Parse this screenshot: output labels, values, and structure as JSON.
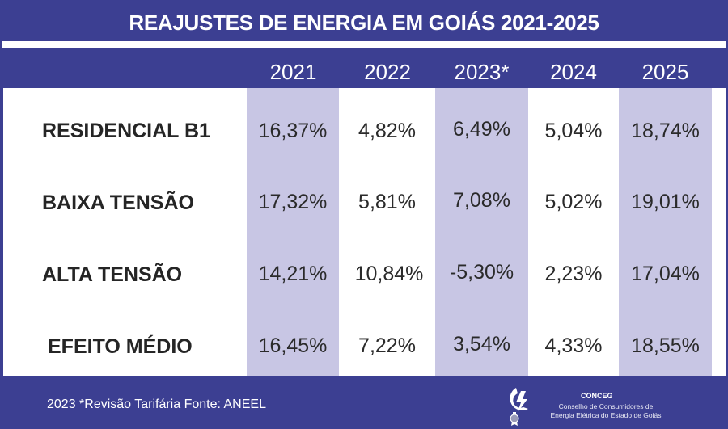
{
  "title": "REAJUSTES DE ENERGIA EM GOIÁS 2021-2025",
  "colors": {
    "background": "#3c3f92",
    "shaded_column": "#c8c6e4",
    "table_background": "#ffffff",
    "text_dark": "#252525"
  },
  "columns": [
    "2021",
    "2022",
    "2023*",
    "2024",
    "2025"
  ],
  "rows": [
    {
      "label": "RESIDENCIAL B1",
      "values": [
        "16,37%",
        "4,82%",
        "6,49%",
        "5,04%",
        "18,74%"
      ]
    },
    {
      "label": "BAIXA TENSÃO",
      "values": [
        "17,32%",
        "5,81%",
        "7,08%",
        "5,02%",
        "19,01%"
      ]
    },
    {
      "label": "ALTA TENSÃO",
      "values": [
        "14,21%",
        "10,84%",
        "-5,30%",
        "2,23%",
        "17,04%"
      ]
    },
    {
      "label": "EFEITO MÉDIO",
      "values": [
        "16,45%",
        "7,22%",
        "3,54%",
        "4,33%",
        "18,55%"
      ]
    }
  ],
  "footer": {
    "note": "2023 *Revisão Tarifária  Fonte: ANEEL",
    "logo": {
      "icon": "conceg-lightning-logo-icon",
      "name": "CONCEG",
      "line1": "Conselho de Consumidores de",
      "line2": "Energia Elétrica do Estado de Goiás"
    }
  }
}
